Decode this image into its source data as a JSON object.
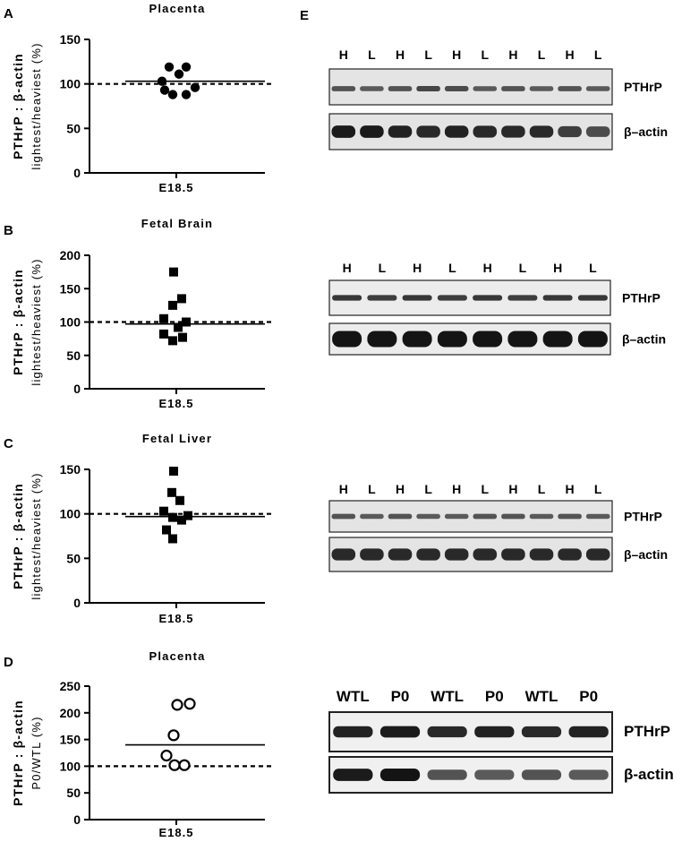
{
  "panel_letters": [
    "A",
    "B",
    "C",
    "D",
    "E"
  ],
  "chart_data": [
    {
      "panel": "A",
      "type": "scatter",
      "title": "Placenta",
      "ylabel_line1": "PTHrP : β-actin",
      "ylabel_line2": "lightest/heaviest (%)",
      "category": "E18.5",
      "ylim": [
        0,
        150
      ],
      "yticks": [
        0,
        50,
        100,
        150
      ],
      "marker": "circle-filled",
      "points": [
        119,
        119,
        111,
        103,
        96,
        93,
        88,
        88
      ],
      "mean": 103,
      "reference": 100
    },
    {
      "panel": "B",
      "type": "scatter",
      "title": "Fetal Brain",
      "ylabel_line1": "PTHrP : β-actin",
      "ylabel_line2": "lightest/heaviest (%)",
      "category": "E18.5",
      "ylim": [
        0,
        200
      ],
      "yticks": [
        0,
        50,
        100,
        150,
        200
      ],
      "marker": "square-filled",
      "points": [
        175,
        135,
        125,
        105,
        100,
        92,
        82,
        77,
        72
      ],
      "mean": 97,
      "reference": 100
    },
    {
      "panel": "C",
      "type": "scatter",
      "title": "Fetal Liver",
      "ylabel_line1": "PTHrP : β-actin",
      "ylabel_line2": "lightest/heaviest (%)",
      "category": "E18.5",
      "ylim": [
        0,
        150
      ],
      "yticks": [
        0,
        50,
        100,
        150
      ],
      "marker": "square-filled",
      "points": [
        148,
        124,
        115,
        103,
        98,
        96,
        93,
        82,
        72
      ],
      "mean": 97,
      "reference": 100
    },
    {
      "panel": "D",
      "type": "scatter",
      "title": "Placenta",
      "ylabel_line1": "PTHrP : β-actin",
      "ylabel_line2": "P0/WTL (%)",
      "category": "E18.5",
      "ylim": [
        0,
        250
      ],
      "yticks": [
        0,
        50,
        100,
        150,
        200,
        250
      ],
      "marker": "circle-open",
      "points": [
        215,
        217,
        158,
        120,
        102,
        102
      ],
      "mean": 140,
      "reference": 100
    }
  ],
  "blots": [
    {
      "lanes": [
        "H",
        "L",
        "H",
        "L",
        "H",
        "L",
        "H",
        "L",
        "H",
        "L"
      ],
      "rows": [
        {
          "label": "PTHrP",
          "intensity": [
            0.55,
            0.5,
            0.55,
            0.65,
            0.6,
            0.5,
            0.55,
            0.5,
            0.55,
            0.5
          ]
        },
        {
          "label": "β–actin",
          "intensity": [
            0.95,
            0.95,
            0.9,
            0.85,
            0.9,
            0.85,
            0.85,
            0.85,
            0.7,
            0.6
          ]
        }
      ]
    },
    {
      "lanes": [
        "H",
        "L",
        "H",
        "L",
        "H",
        "L",
        "H",
        "L"
      ],
      "rows": [
        {
          "label": "PTHrP",
          "intensity": [
            0.75,
            0.7,
            0.75,
            0.7,
            0.75,
            0.7,
            0.75,
            0.75
          ]
        },
        {
          "label": "β–actin",
          "intensity": [
            1,
            1,
            1,
            1,
            1,
            1,
            1,
            1
          ]
        }
      ]
    },
    {
      "lanes": [
        "H",
        "L",
        "H",
        "L",
        "H",
        "L",
        "H",
        "L",
        "H",
        "L"
      ],
      "rows": [
        {
          "label": "PTHrP",
          "intensity": [
            0.55,
            0.5,
            0.55,
            0.5,
            0.5,
            0.55,
            0.55,
            0.5,
            0.55,
            0.5
          ]
        },
        {
          "label": "β–actin",
          "intensity": [
            0.85,
            0.85,
            0.85,
            0.85,
            0.85,
            0.85,
            0.85,
            0.85,
            0.85,
            0.85
          ]
        }
      ]
    },
    {
      "lanes": [
        "WTL",
        "P0",
        "WTL",
        "P0",
        "WTL",
        "P0"
      ],
      "rows": [
        {
          "label": "PTHrP",
          "intensity": [
            0.9,
            0.95,
            0.85,
            0.9,
            0.85,
            0.9
          ]
        },
        {
          "label": "β-actin",
          "intensity": [
            0.95,
            1.0,
            0.55,
            0.5,
            0.55,
            0.5
          ]
        }
      ]
    }
  ]
}
